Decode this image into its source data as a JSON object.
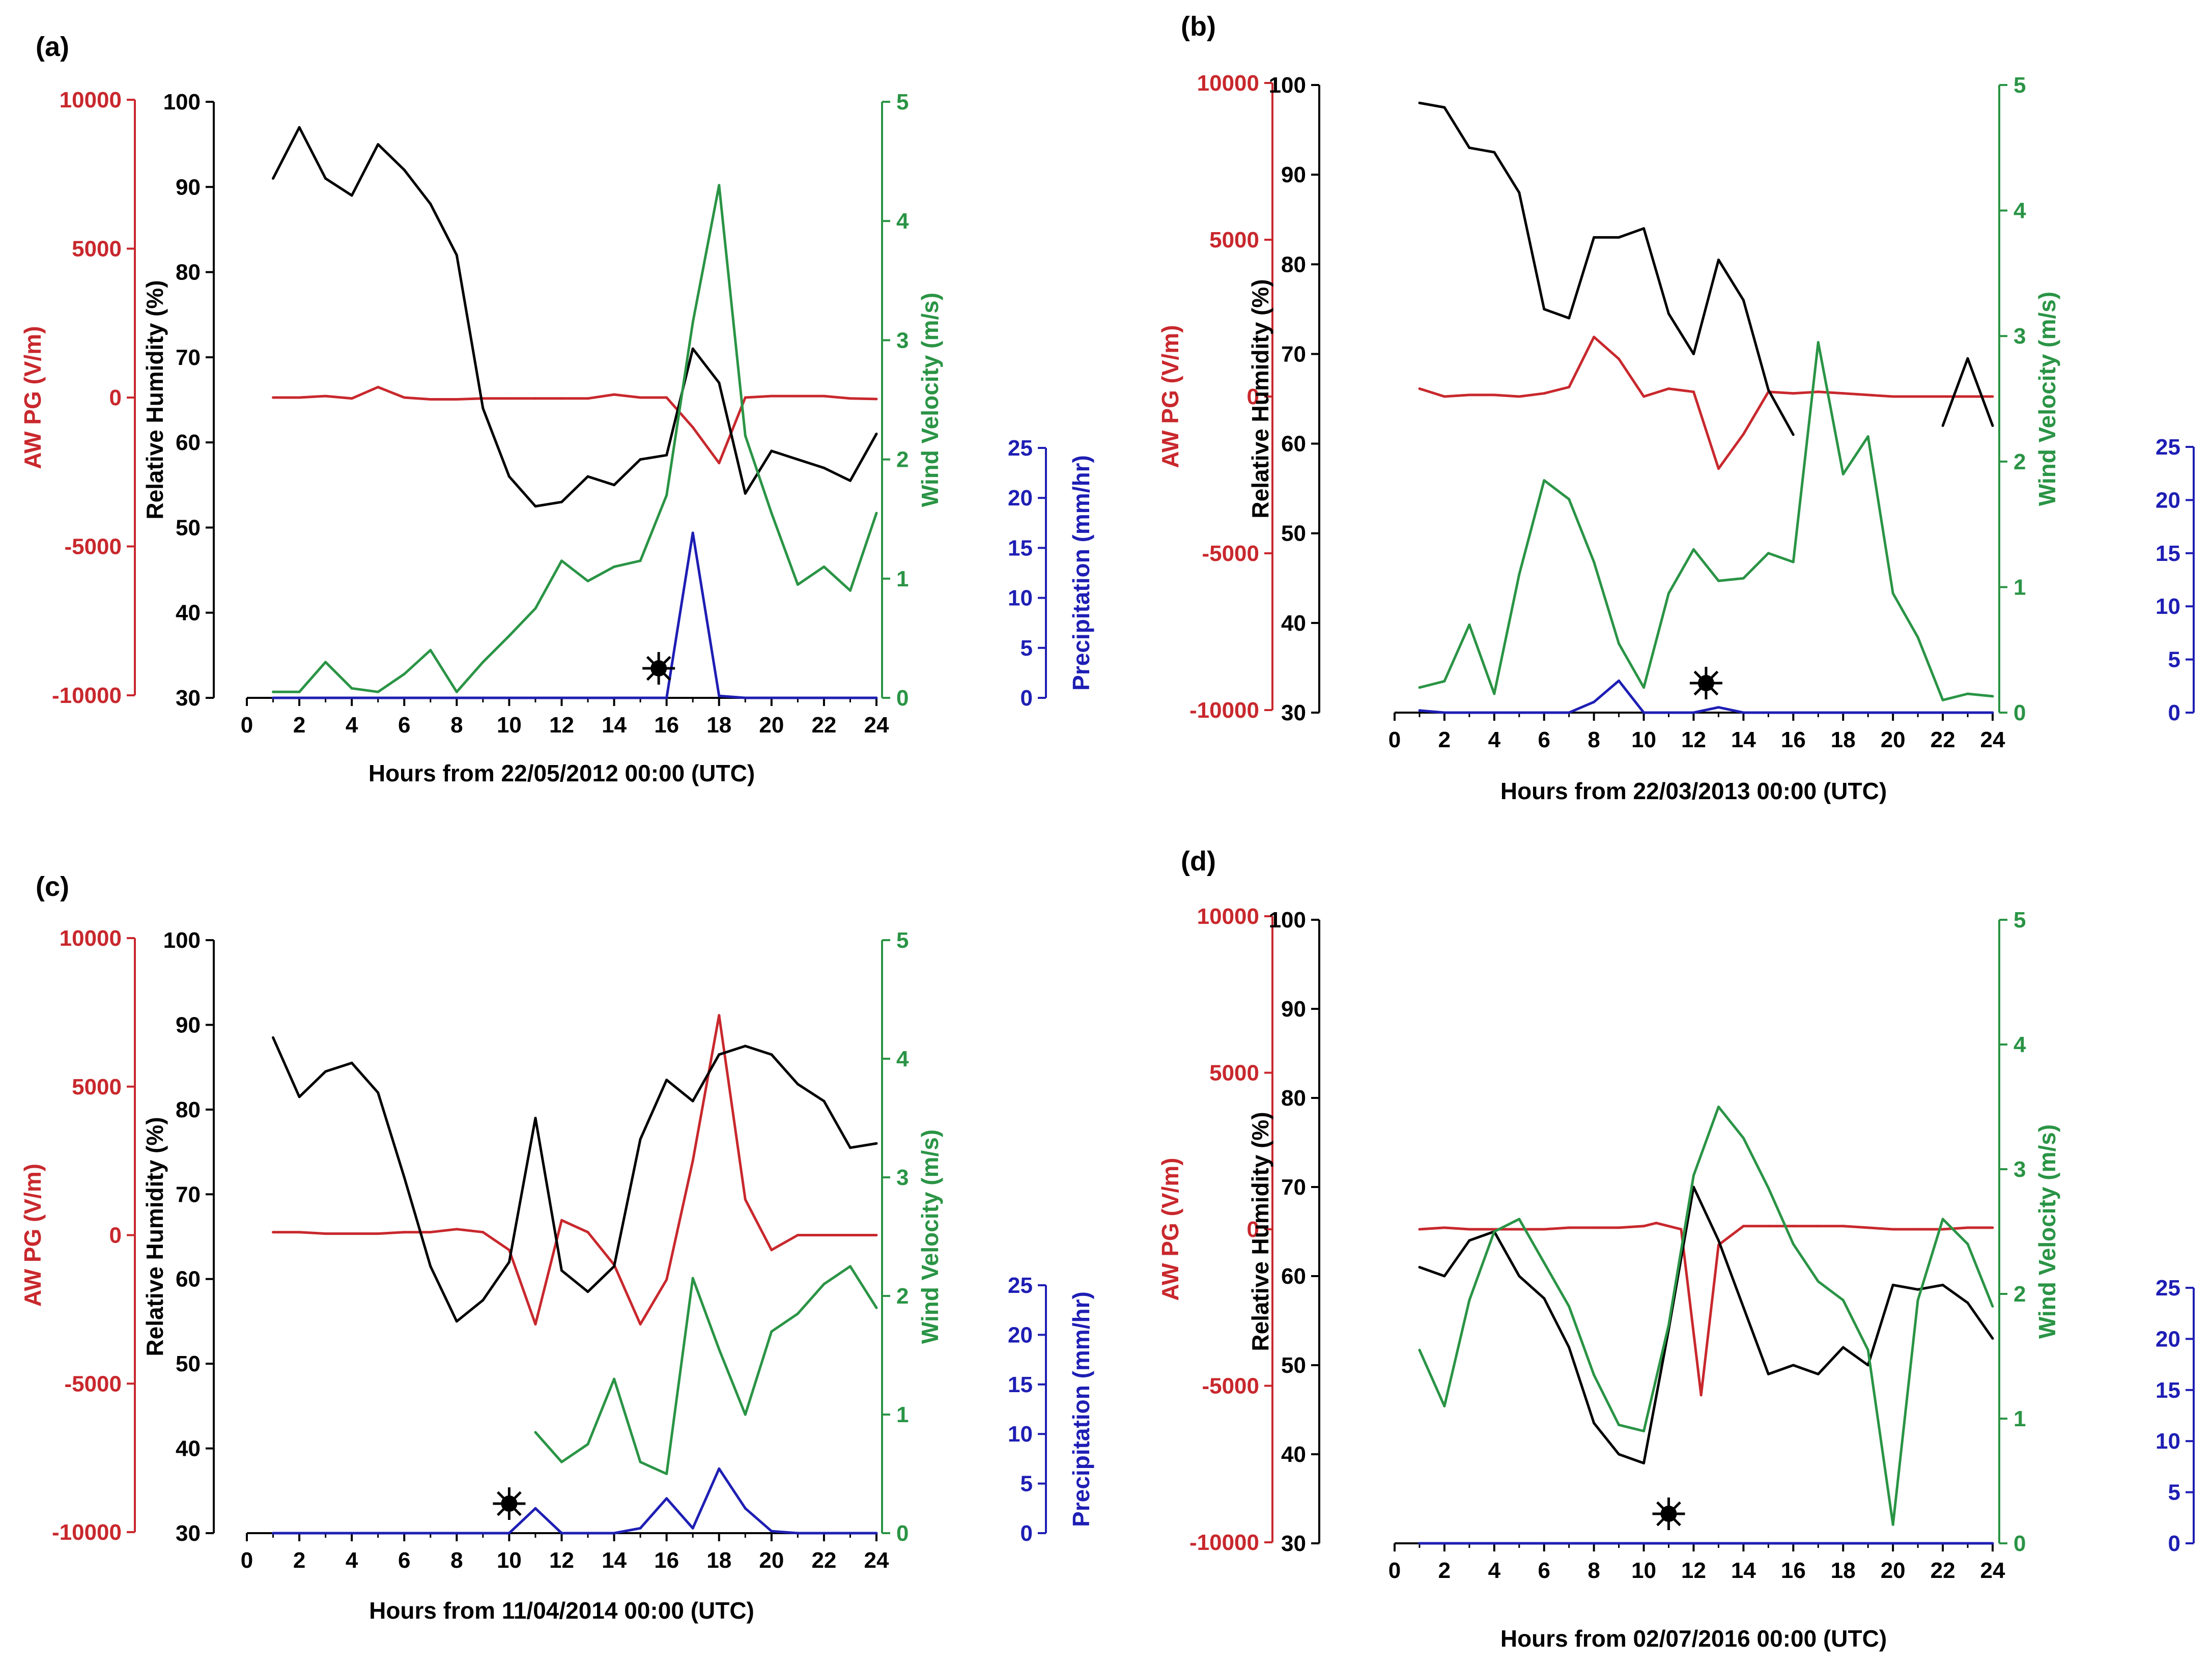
{
  "colors": {
    "pg": "#c8282d",
    "rh": "#000000",
    "wind": "#2a9445",
    "precip": "#1e1eb4",
    "event_marker": "#000000"
  },
  "shared": {
    "pg_axis": {
      "title": "AW PG (V/m)",
      "ylim": [
        -10000,
        10000
      ],
      "ticks": [
        -10000,
        -5000,
        0,
        5000,
        10000
      ]
    },
    "rh_axis": {
      "title": "Relative Humidity (%)",
      "ylim": [
        30,
        100
      ],
      "ticks": [
        30,
        40,
        50,
        60,
        70,
        80,
        90,
        100
      ]
    },
    "wind_axis": {
      "title": "Wind Velocity (m/s)",
      "ylim": [
        0,
        5
      ],
      "ticks": [
        0,
        1,
        2,
        3,
        4,
        5
      ]
    },
    "precip_axis": {
      "title": "Precipitation (mm/hr)",
      "ylim": [
        0,
        25
      ],
      "ticks": [
        0,
        5,
        10,
        15,
        20,
        25
      ]
    },
    "x_axis": {
      "xlim": [
        0,
        24
      ],
      "ticks": [
        0,
        2,
        4,
        6,
        8,
        10,
        12,
        14,
        16,
        18,
        20,
        22,
        24
      ]
    }
  },
  "chart_data": [
    {
      "panel": "(a)",
      "type": "line",
      "xlabel": "Hours from 22/05/2012 00:00 (UTC)",
      "event_marker_hour": 15.7,
      "series": [
        {
          "name": "AW PG (V/m)",
          "axis": "pg",
          "x": [
            1,
            2,
            3,
            4,
            5,
            6,
            7,
            8,
            9,
            10,
            11,
            12,
            13,
            14,
            15,
            16,
            17,
            18,
            19,
            20,
            21,
            22,
            23,
            24
          ],
          "values": [
            0,
            0,
            50,
            -30,
            350,
            0,
            -60,
            -60,
            -30,
            -30,
            -30,
            -30,
            -30,
            100,
            0,
            0,
            -1000,
            -2200,
            0,
            50,
            50,
            50,
            -30,
            -50
          ]
        },
        {
          "name": "Relative Humidity (%)",
          "axis": "rh",
          "x": [
            1,
            2,
            3,
            4,
            5,
            6,
            7,
            8,
            9,
            10,
            11,
            12,
            13,
            14,
            15,
            16,
            17,
            18,
            19,
            20,
            21,
            22,
            23,
            24
          ],
          "values": [
            91,
            97,
            91,
            89,
            95,
            92,
            88,
            82,
            64,
            56,
            52.5,
            53,
            56,
            55,
            58,
            58.5,
            71,
            67,
            54,
            59,
            58,
            57,
            55.5,
            61
          ]
        },
        {
          "name": "Wind Velocity (m/s)",
          "axis": "wind",
          "x": [
            1,
            2,
            3,
            4,
            5,
            6,
            7,
            8,
            9,
            10,
            11,
            12,
            13,
            14,
            15,
            16,
            17,
            18,
            19,
            20,
            21,
            22,
            23,
            24
          ],
          "values": [
            0.05,
            0.05,
            0.3,
            0.08,
            0.05,
            0.2,
            0.4,
            0.05,
            0.3,
            0.52,
            0.75,
            1.15,
            0.98,
            1.1,
            1.15,
            1.7,
            3.15,
            4.3,
            2.2,
            1.55,
            0.95,
            1.1,
            0.9,
            1.55
          ]
        },
        {
          "name": "Precipitation (mm/hr)",
          "axis": "precip",
          "x": [
            1,
            2,
            3,
            4,
            5,
            6,
            7,
            8,
            9,
            10,
            11,
            12,
            13,
            14,
            15,
            16,
            17,
            18,
            19,
            20,
            21,
            22,
            23,
            24
          ],
          "values": [
            0,
            0,
            0,
            0,
            0,
            0,
            0,
            0,
            0,
            0,
            0,
            0,
            0,
            0,
            0,
            0,
            16.5,
            0.2,
            0,
            0,
            0,
            0,
            0,
            0
          ]
        }
      ]
    },
    {
      "panel": "(b)",
      "type": "line",
      "xlabel": "Hours from 22/03/2013 00:00 (UTC)",
      "event_marker_hour": 12.5,
      "series": [
        {
          "name": "AW PG (V/m)",
          "axis": "pg",
          "x": [
            1,
            2,
            3,
            4,
            5,
            6,
            7,
            8,
            9,
            10,
            11,
            12,
            13,
            14,
            15,
            16,
            17,
            18,
            19,
            20,
            21,
            22,
            23,
            24
          ],
          "values": [
            250,
            0,
            50,
            50,
            0,
            100,
            300,
            1900,
            1200,
            0,
            250,
            150,
            -2300,
            -1200,
            150,
            100,
            150,
            100,
            50,
            0,
            0,
            0,
            0,
            0
          ]
        },
        {
          "name": "Relative Humidity (%)",
          "axis": "rh",
          "x": [
            1,
            2,
            3,
            4,
            5,
            6,
            7,
            8,
            9,
            10,
            11,
            12,
            13,
            14,
            15,
            16,
            null,
            null,
            null,
            null,
            null,
            22,
            23,
            24
          ],
          "values": [
            98,
            97.5,
            93,
            92.5,
            88,
            75,
            74,
            83,
            83,
            84,
            74.5,
            70,
            80.5,
            76,
            66,
            61,
            null,
            null,
            null,
            null,
            null,
            62,
            69.5,
            62
          ]
        },
        {
          "name": "Wind Velocity (m/s)",
          "axis": "wind",
          "x": [
            1,
            2,
            3,
            4,
            5,
            6,
            7,
            8,
            9,
            10,
            11,
            12,
            13,
            14,
            15,
            16,
            17,
            18,
            19,
            20,
            21,
            22,
            23,
            24
          ],
          "values": [
            0.2,
            0.25,
            0.7,
            0.15,
            1.1,
            1.85,
            1.7,
            1.2,
            0.55,
            0.2,
            0.95,
            1.3,
            1.05,
            1.07,
            1.27,
            1.2,
            2.95,
            1.9,
            2.2,
            0.95,
            0.6,
            0.1,
            0.15,
            0.13
          ]
        },
        {
          "name": "Precipitation (mm/hr)",
          "axis": "precip",
          "x": [
            1,
            2,
            3,
            4,
            5,
            6,
            7,
            8,
            9,
            10,
            11,
            12,
            13,
            14,
            15,
            16,
            17,
            18,
            19,
            20,
            21,
            22,
            23,
            24
          ],
          "values": [
            0.2,
            0,
            0,
            0,
            0,
            0,
            0,
            1,
            3,
            0,
            0,
            0,
            0.5,
            0,
            0,
            0,
            0,
            0,
            0,
            0,
            0,
            0,
            0,
            0
          ]
        }
      ]
    },
    {
      "panel": "(c)",
      "type": "line",
      "xlabel": "Hours from 11/04/2014 00:00 (UTC)",
      "event_marker_hour": 10,
      "series": [
        {
          "name": "AW PG (V/m)",
          "axis": "pg",
          "x": [
            1,
            2,
            3,
            4,
            5,
            6,
            7,
            8,
            9,
            10,
            11,
            12,
            13,
            14,
            15,
            16,
            17,
            18,
            19,
            20,
            21,
            22,
            23,
            24
          ],
          "values": [
            100,
            100,
            50,
            50,
            50,
            100,
            100,
            200,
            100,
            -500,
            -3000,
            500,
            100,
            -1000,
            -3000,
            -1500,
            2500,
            7400,
            1200,
            -500,
            0,
            0,
            0,
            0
          ]
        },
        {
          "name": "Relative Humidity (%)",
          "axis": "rh",
          "x": [
            1,
            2,
            3,
            4,
            5,
            6,
            7,
            8,
            9,
            10,
            11,
            12,
            13,
            14,
            15,
            16,
            17,
            18,
            19,
            20,
            21,
            22,
            23,
            24
          ],
          "values": [
            88.5,
            81.5,
            84.5,
            85.5,
            82,
            72,
            61.5,
            55,
            57.5,
            62,
            79,
            61,
            58.5,
            61.5,
            76.5,
            83.5,
            81,
            86.5,
            87.5,
            86.5,
            83,
            81,
            75.5,
            76
          ]
        },
        {
          "name": "Wind Velocity (m/s)",
          "axis": "wind",
          "x": [
            11,
            12,
            13,
            14,
            15,
            16,
            17,
            18,
            19,
            20,
            21,
            22,
            23,
            24
          ],
          "values": [
            0.85,
            0.6,
            0.75,
            1.3,
            0.6,
            0.5,
            2.15,
            1.55,
            1.0,
            1.7,
            1.85,
            2.1,
            2.25,
            1.9
          ]
        },
        {
          "name": "Precipitation (mm/hr)",
          "axis": "precip",
          "x": [
            1,
            2,
            3,
            4,
            5,
            6,
            7,
            8,
            9,
            10,
            11,
            12,
            13,
            14,
            15,
            16,
            17,
            18,
            19,
            20,
            21,
            22,
            23,
            24
          ],
          "values": [
            0,
            0,
            0,
            0,
            0,
            0,
            0,
            0,
            0,
            0,
            2.5,
            0,
            0,
            0,
            0.5,
            3.5,
            0.5,
            6.5,
            2.5,
            0.2,
            0,
            0,
            0,
            0
          ]
        }
      ]
    },
    {
      "panel": "(d)",
      "type": "line",
      "xlabel": "Hours from 02/07/2016 00:00 (UTC)",
      "event_marker_hour": 11,
      "series": [
        {
          "name": "AW PG (V/m)",
          "axis": "pg",
          "x": [
            1,
            2,
            3,
            4,
            5,
            6,
            7,
            8,
            9,
            10,
            10.5,
            11.5,
            12.3,
            13,
            14,
            15,
            16,
            17,
            18,
            19,
            20,
            21,
            22,
            23,
            24
          ],
          "values": [
            0,
            50,
            0,
            0,
            0,
            0,
            50,
            50,
            50,
            100,
            200,
            0,
            -5300,
            -500,
            100,
            100,
            100,
            100,
            100,
            50,
            0,
            0,
            0,
            50,
            50
          ]
        },
        {
          "name": "Relative Humidity (%)",
          "axis": "rh",
          "x": [
            1,
            2,
            3,
            4,
            5,
            6,
            7,
            8,
            9,
            10,
            11,
            12,
            13,
            14,
            15,
            16,
            17,
            18,
            19,
            20,
            21,
            22,
            23,
            24
          ],
          "values": [
            61,
            60,
            64,
            65,
            60,
            57.5,
            52,
            43.5,
            40,
            39,
            54,
            70,
            64,
            56.5,
            49,
            50,
            49,
            52,
            50,
            59,
            58.5,
            59,
            57,
            53
          ]
        },
        {
          "name": "Wind Velocity (m/s)",
          "axis": "wind",
          "x": [
            1,
            2,
            3,
            4,
            5,
            6,
            7,
            8,
            9,
            10,
            11,
            12,
            13,
            14,
            15,
            16,
            17,
            18,
            19,
            20,
            21,
            22,
            23,
            24
          ],
          "values": [
            1.55,
            1.1,
            1.95,
            2.5,
            2.6,
            2.25,
            1.9,
            1.35,
            0.95,
            0.9,
            1.75,
            2.95,
            3.5,
            3.25,
            2.85,
            2.4,
            2.1,
            1.95,
            1.55,
            0.15,
            1.95,
            2.6,
            2.4,
            1.9
          ]
        },
        {
          "name": "Precipitation (mm/hr)",
          "axis": "precip",
          "x": [
            1,
            2,
            3,
            4,
            5,
            6,
            7,
            8,
            9,
            10,
            11,
            12,
            13,
            14,
            15,
            16,
            17,
            18,
            19,
            20,
            21,
            22,
            23,
            24
          ],
          "values": [
            0,
            0,
            0,
            0,
            0,
            0,
            0,
            0,
            0,
            0,
            0,
            0,
            0,
            0,
            0,
            0,
            0,
            0,
            0,
            0,
            0,
            0,
            0,
            0
          ]
        }
      ]
    }
  ]
}
